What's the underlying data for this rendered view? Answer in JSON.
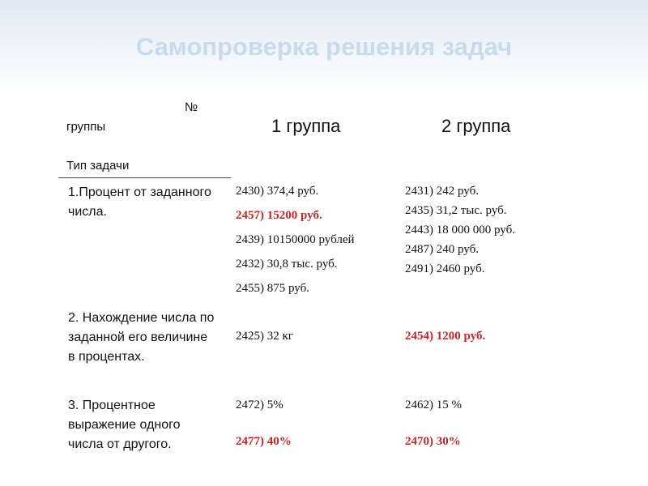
{
  "title": "Самопроверка решения задач",
  "table": {
    "corner": {
      "top": "№",
      "middle": "группы",
      "bottom": "Тип задачи"
    },
    "columns": [
      "1 группа",
      "2 группа"
    ],
    "rows": [
      {
        "type": "1.Процент от заданного числа.",
        "cells": [
          [
            {
              "text": "2430) 374,4 руб.",
              "highlight": false
            },
            {
              "text": "2457) 15200 руб.",
              "highlight": true
            },
            {
              "text": "2439)  10150000 рублей",
              "highlight": false
            },
            {
              "text": "2432)  30,8 тыс. руб.",
              "highlight": false
            },
            {
              "text": "2455) 875 руб.",
              "highlight": false
            }
          ],
          [
            {
              "text": "2431) 242 руб.",
              "highlight": false
            },
            {
              "text": "2435) 31,2 тыс. руб.",
              "highlight": false
            },
            {
              "text": "2443) 18 000 000 руб.",
              "highlight": false
            },
            {
              "text": "2487) 240 руб.",
              "highlight": false
            },
            {
              "text": "2491) 2460 руб.",
              "highlight": false
            }
          ]
        ]
      },
      {
        "type": "2. Нахождение числа по заданной его величине в процентах.",
        "cells": [
          [
            {
              "text": "2425) 32 кг",
              "highlight": false
            }
          ],
          [
            {
              "text": "2454) 1200 руб.",
              "highlight": true
            }
          ]
        ]
      },
      {
        "type": "3.  Процентное выражение одного числа от другого.",
        "cells": [
          [
            {
              "text": "2472) 5%",
              "highlight": false
            },
            {
              "text": "2477) 40%",
              "highlight": true
            }
          ],
          [
            {
              "text": "2462) 15 %",
              "highlight": false
            },
            {
              "text": "2470) 30%",
              "highlight": true
            }
          ]
        ]
      }
    ]
  }
}
